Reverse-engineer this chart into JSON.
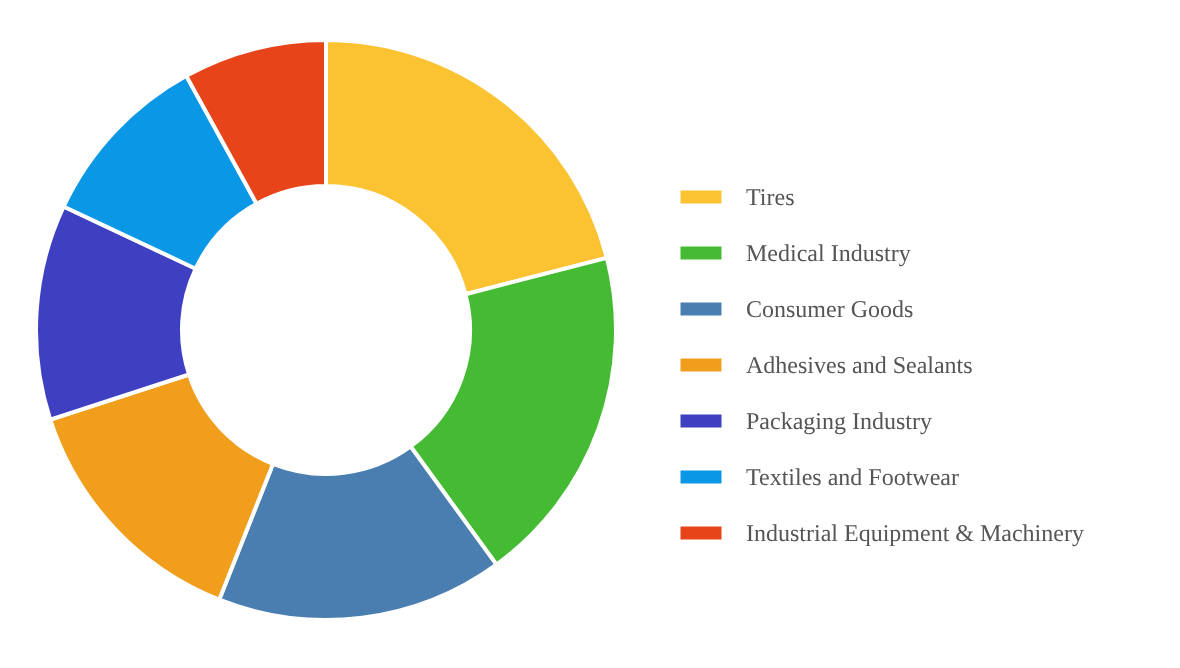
{
  "chart_data": {
    "type": "donut",
    "categories": [
      "Tires",
      "Medical Industry",
      "Consumer Goods",
      "Adhesives and Sealants",
      "Packaging Industry",
      "Textiles and Footwear",
      "Industrial Equipment & Machinery"
    ],
    "values": [
      21,
      19,
      16,
      14,
      12,
      10,
      8
    ],
    "colors": [
      "#fbc232",
      "#44bb33",
      "#4a7eb0",
      "#f09e1c",
      "#3f3fc2",
      "#0a98e6",
      "#e8441a"
    ],
    "legend": "right"
  }
}
